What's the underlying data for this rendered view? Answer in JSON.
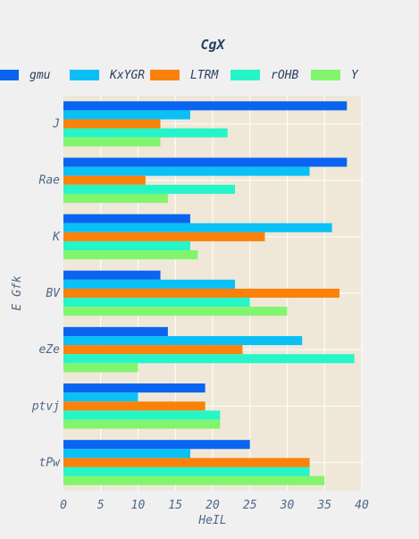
{
  "chart_data": {
    "type": "bar",
    "orientation": "horizontal",
    "title": "CgX",
    "xlabel": "HeIL",
    "ylabel": "E Gfk",
    "categories": [
      "J",
      "Rae",
      "K",
      "BV",
      "eZe",
      "ptvj",
      "tPw"
    ],
    "xlim": [
      0,
      40
    ],
    "xticks": [
      0,
      5,
      10,
      15,
      20,
      25,
      30,
      35,
      40
    ],
    "grid": true,
    "legend_position": "top",
    "series": [
      {
        "name": "gmu",
        "color": "#0a64f0",
        "values": [
          38,
          38,
          17,
          13,
          14,
          19,
          25
        ]
      },
      {
        "name": "KxYGR",
        "color": "#0ac0f5",
        "values": [
          17,
          33,
          36,
          23,
          32,
          10,
          17
        ]
      },
      {
        "name": "LTRM",
        "color": "#fa820a",
        "values": [
          13,
          11,
          27,
          37,
          24,
          19,
          33
        ]
      },
      {
        "name": "rOHB",
        "color": "#26f5c8",
        "values": [
          22,
          23,
          17,
          25,
          39,
          21,
          33
        ]
      },
      {
        "name": "Y",
        "color": "#82f56e",
        "values": [
          13,
          14,
          18,
          30,
          10,
          21,
          35
        ]
      }
    ]
  }
}
